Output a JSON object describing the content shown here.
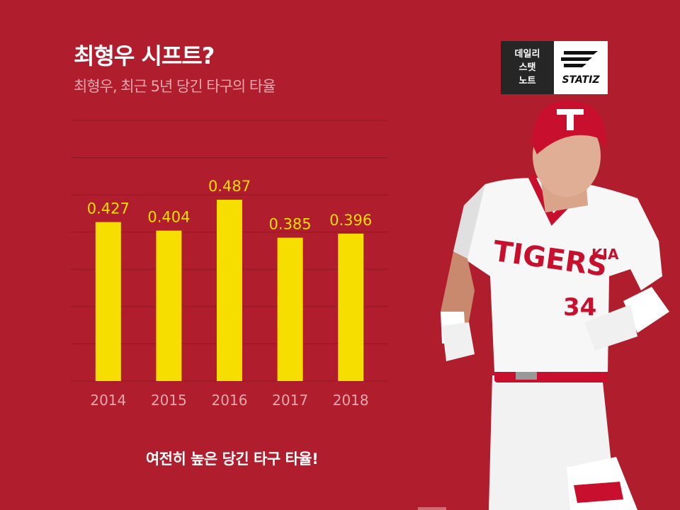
{
  "header": {
    "title": "최형우 시프트?",
    "subtitle": "최형우, 최근 5년 당긴 타구의 타율"
  },
  "logo": {
    "line1": "데일리",
    "line2": "스탯",
    "line3": "노트",
    "brand": "STATIZ"
  },
  "footer": {
    "text": "여전히 높은 당긴 타구 타율!"
  },
  "player": {
    "team_text": "TIGERS",
    "badge_text": "KIA",
    "number": "34",
    "helmet_letter": "T"
  },
  "colors": {
    "background": "#b01e2e",
    "bar": "#f5de00",
    "value_label": "#f5de00",
    "tick_label": "#e7a6ad",
    "grid": "#8f1724"
  },
  "chart_data": {
    "type": "bar",
    "categories": [
      "2014",
      "2015",
      "2016",
      "2017",
      "2018"
    ],
    "values": [
      0.427,
      0.404,
      0.487,
      0.385,
      0.396
    ],
    "value_labels": [
      "0.427",
      "0.404",
      "0.487",
      "0.385",
      "0.396"
    ],
    "title": "최형우 시프트?",
    "subtitle": "최형우, 최근 5년 당긴 타구의 타율",
    "xlabel": "",
    "ylabel": "",
    "ylim": [
      0,
      0.7
    ],
    "grid": true,
    "legend": "none"
  }
}
